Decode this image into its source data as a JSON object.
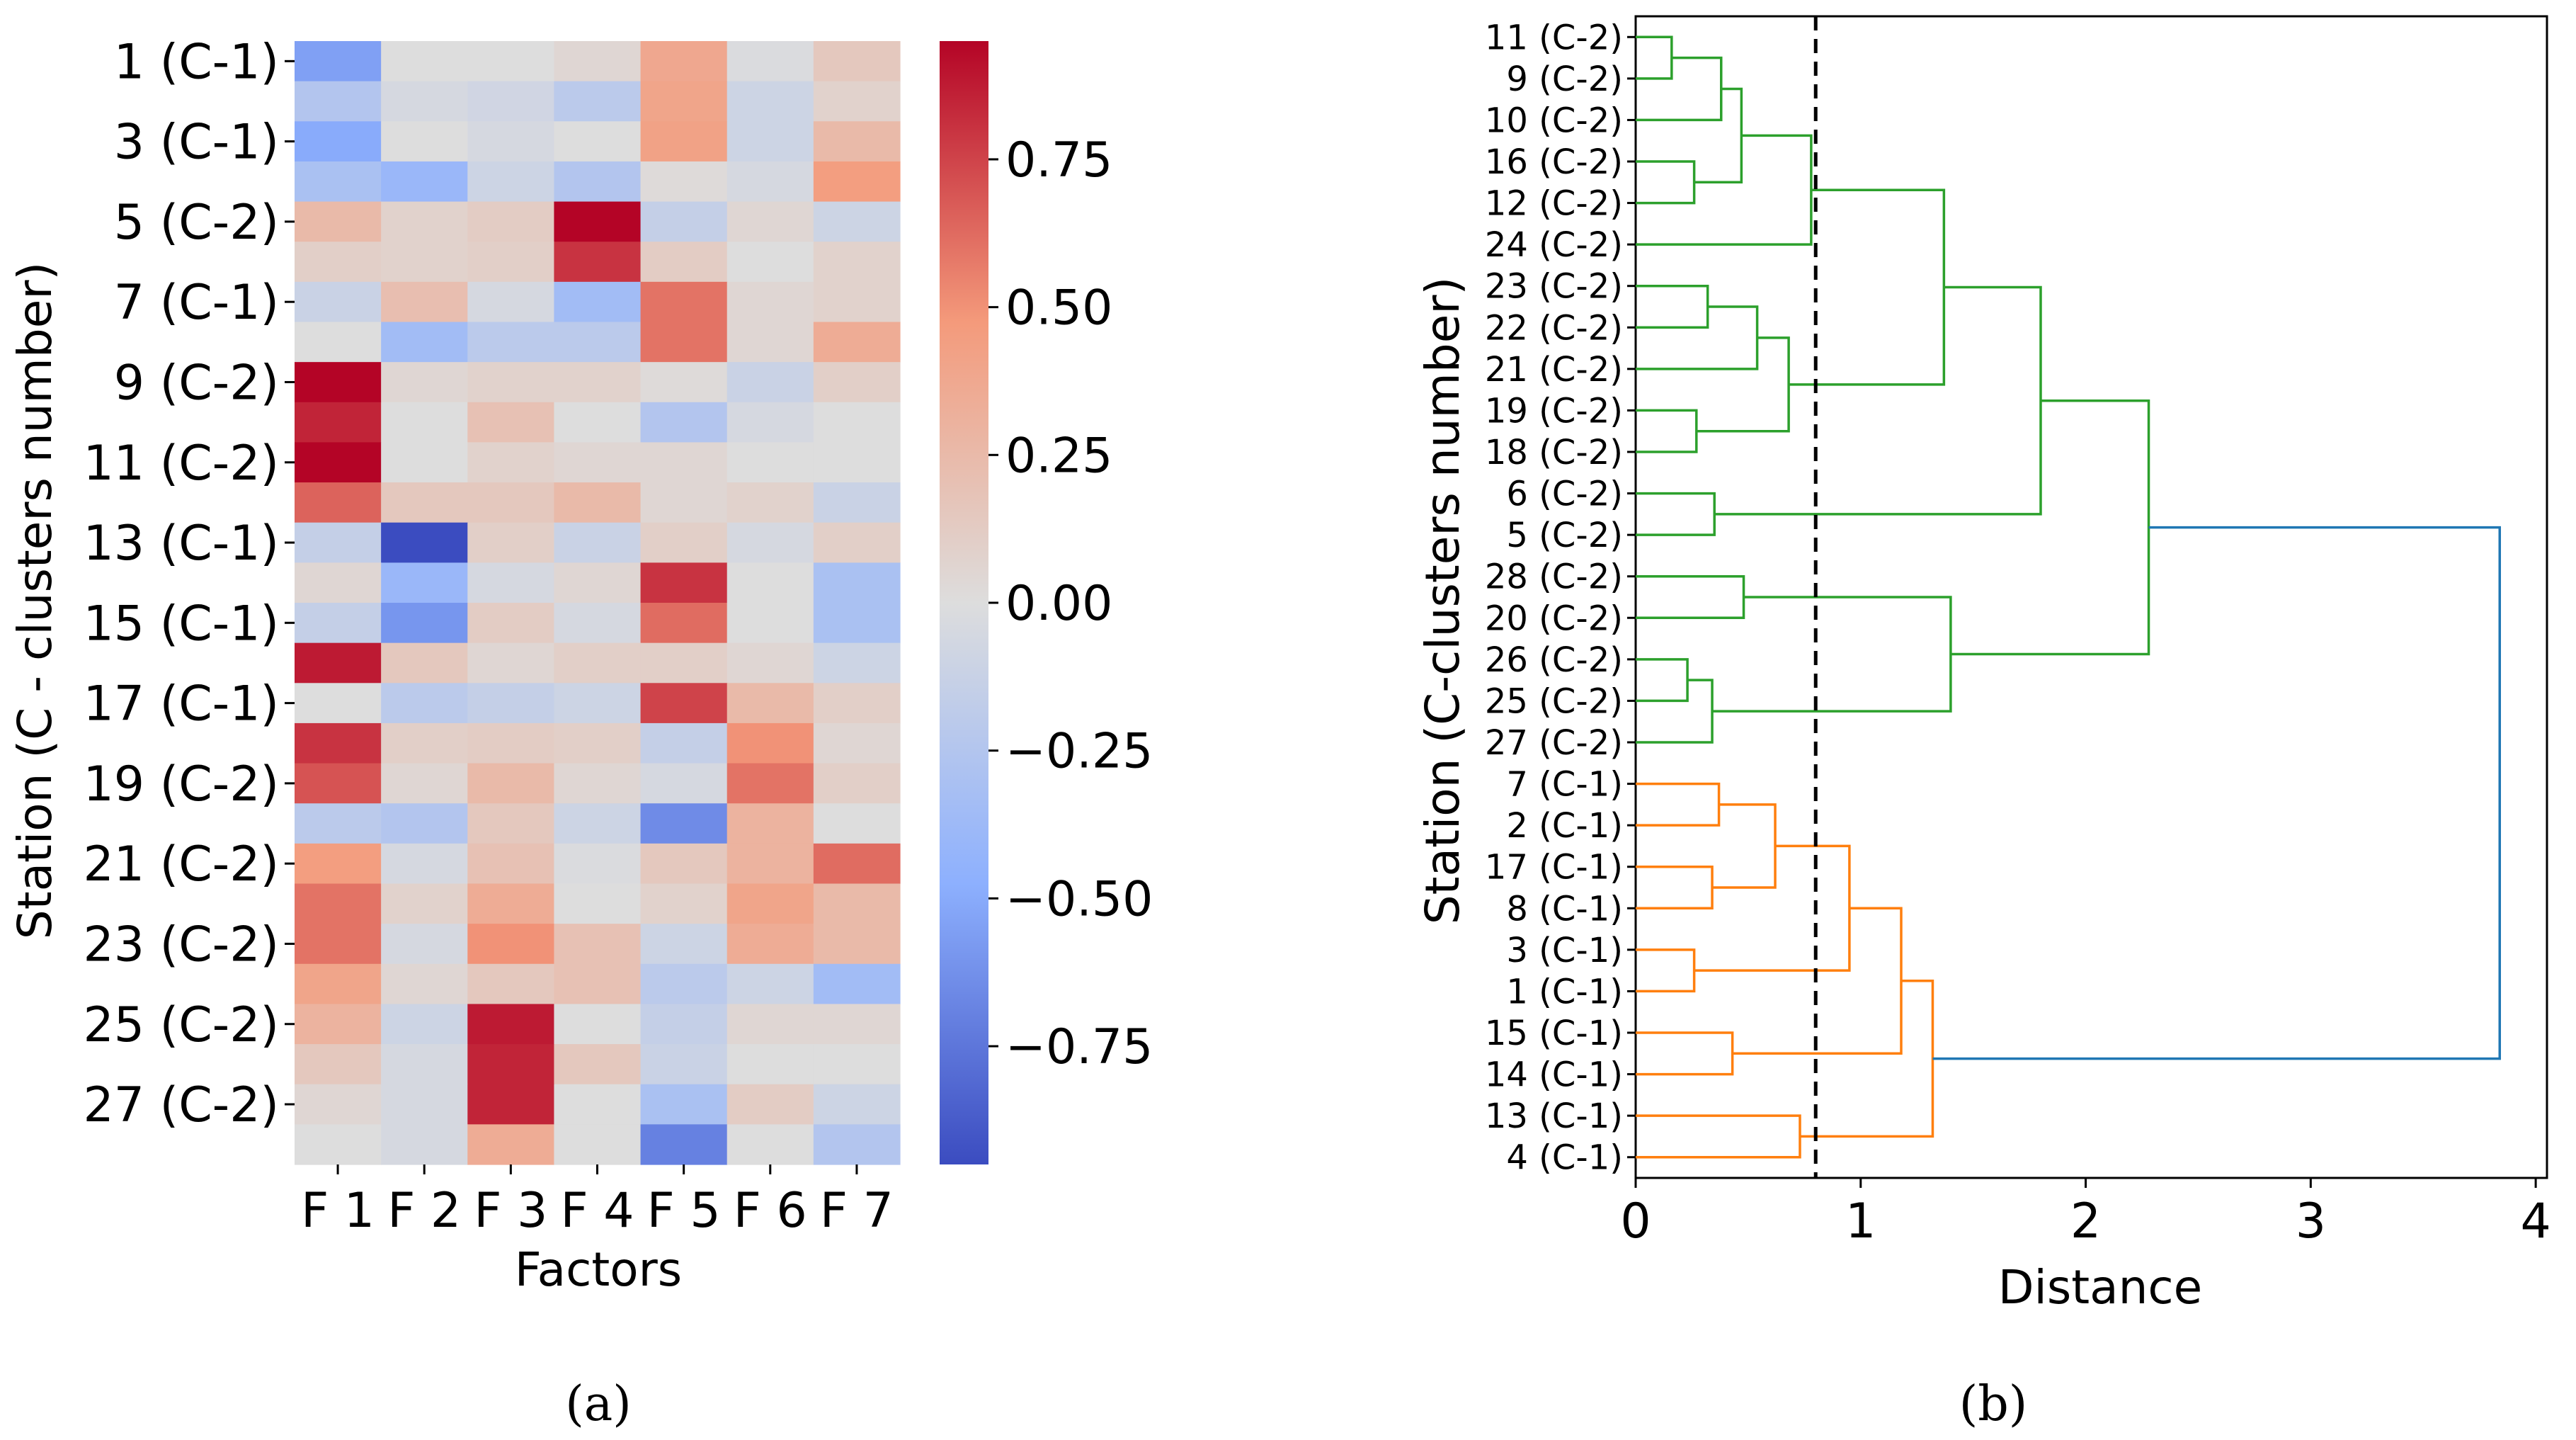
{
  "chart_data": [
    {
      "type": "heatmap",
      "panel_label": "a",
      "xlabel": "Factors",
      "ylabel": "Station (C - clusters number)",
      "columns": [
        "F 1",
        "F 2",
        "F 3",
        "F 4",
        "F 5",
        "F 6",
        "F 7"
      ],
      "row_tick_labels": [
        "1 (C-1)",
        "3 (C-1)",
        "5 (C-2)",
        "7 (C-1)",
        "9 (C-2)",
        "11 (C-2)",
        "13 (C-1)",
        "15 (C-1)",
        "17 (C-1)",
        "19 (C-2)",
        "21 (C-2)",
        "23 (C-2)",
        "25 (C-2)",
        "27 (C-2)"
      ],
      "rows": [
        "1 (C-1)",
        "2 (C-1)",
        "3 (C-1)",
        "4 (C-1)",
        "5 (C-2)",
        "6 (C-2)",
        "7 (C-1)",
        "8 (C-1)",
        "9 (C-2)",
        "10 (C-2)",
        "11 (C-2)",
        "12 (C-2)",
        "13 (C-1)",
        "14 (C-1)",
        "15 (C-1)",
        "16 (C-2)",
        "17 (C-1)",
        "18 (C-2)",
        "19 (C-2)",
        "20 (C-2)",
        "21 (C-2)",
        "22 (C-2)",
        "23 (C-2)",
        "24 (C-2)",
        "25 (C-2)",
        "26 (C-2)",
        "27 (C-2)",
        "28 (C-2)"
      ],
      "values": [
        [
          -0.55,
          0.0,
          0.0,
          0.05,
          0.38,
          -0.02,
          0.15
        ],
        [
          -0.25,
          -0.05,
          -0.08,
          -0.2,
          0.4,
          -0.1,
          0.08
        ],
        [
          -0.5,
          0.0,
          -0.05,
          0.0,
          0.42,
          -0.1,
          0.25
        ],
        [
          -0.3,
          -0.4,
          -0.1,
          -0.25,
          0.02,
          -0.05,
          0.45
        ],
        [
          0.25,
          0.08,
          0.12,
          0.95,
          -0.15,
          0.05,
          -0.1
        ],
        [
          0.1,
          0.08,
          0.1,
          0.8,
          0.12,
          0.0,
          0.08
        ],
        [
          -0.12,
          0.22,
          -0.05,
          -0.35,
          0.6,
          0.05,
          0.08
        ],
        [
          0.0,
          -0.35,
          -0.2,
          -0.2,
          0.6,
          0.05,
          0.35
        ],
        [
          0.98,
          0.05,
          0.08,
          0.08,
          0.02,
          -0.12,
          0.1
        ],
        [
          0.85,
          0.0,
          0.2,
          0.0,
          -0.25,
          -0.05,
          0.0
        ],
        [
          0.95,
          0.0,
          0.08,
          0.05,
          0.05,
          0.0,
          0.0
        ],
        [
          0.65,
          0.15,
          0.15,
          0.25,
          0.05,
          0.08,
          -0.12
        ],
        [
          -0.15,
          -0.95,
          0.1,
          -0.12,
          0.1,
          -0.05,
          0.1
        ],
        [
          0.05,
          -0.4,
          -0.05,
          0.05,
          0.8,
          0.0,
          -0.3
        ],
        [
          -0.15,
          -0.6,
          0.12,
          -0.05,
          0.62,
          0.0,
          -0.3
        ],
        [
          0.88,
          0.15,
          0.05,
          0.1,
          0.1,
          0.05,
          -0.1
        ],
        [
          0.0,
          -0.2,
          -0.15,
          -0.1,
          0.75,
          0.25,
          0.1
        ],
        [
          0.8,
          0.1,
          0.12,
          0.1,
          -0.15,
          0.5,
          0.05
        ],
        [
          0.7,
          0.05,
          0.25,
          0.05,
          -0.05,
          0.6,
          0.1
        ],
        [
          -0.2,
          -0.25,
          0.15,
          -0.1,
          -0.65,
          0.3,
          0.0
        ],
        [
          0.45,
          -0.05,
          0.2,
          -0.02,
          0.15,
          0.3,
          0.62
        ],
        [
          0.6,
          0.08,
          0.35,
          0.0,
          0.08,
          0.4,
          0.25
        ],
        [
          0.6,
          -0.05,
          0.5,
          0.2,
          -0.1,
          0.35,
          0.25
        ],
        [
          0.4,
          0.05,
          0.15,
          0.2,
          -0.2,
          -0.1,
          -0.35
        ],
        [
          0.3,
          -0.1,
          0.88,
          0.0,
          -0.15,
          0.05,
          0.05
        ],
        [
          0.15,
          -0.05,
          0.85,
          0.15,
          -0.12,
          0.0,
          0.0
        ],
        [
          0.05,
          -0.05,
          0.85,
          0.0,
          -0.3,
          0.12,
          -0.1
        ],
        [
          0.0,
          -0.05,
          0.35,
          0.0,
          -0.7,
          0.0,
          -0.25
        ]
      ],
      "vmin": -0.95,
      "vmax": 0.95,
      "colormap": "coolwarm",
      "colorbar_ticks": [
        0.75,
        0.5,
        0.25,
        0.0,
        -0.25,
        -0.5,
        -0.75
      ],
      "colorbar_tick_labels": [
        "0.75",
        "0.50",
        "0.25",
        "0.00",
        "−0.25",
        "−0.50",
        "−0.75"
      ]
    },
    {
      "type": "dendrogram",
      "panel_label": "b",
      "xlabel": "Distance",
      "ylabel": "Station (C-clusters number)",
      "x_ticks": [
        0,
        1,
        2,
        3,
        4
      ],
      "xlim": [
        0,
        4.05
      ],
      "leaves": [
        "11 (C-2)",
        "9 (C-2)",
        "10 (C-2)",
        "16 (C-2)",
        "12 (C-2)",
        "24 (C-2)",
        "23 (C-2)",
        "22 (C-2)",
        "21 (C-2)",
        "19 (C-2)",
        "18 (C-2)",
        "6 (C-2)",
        "5 (C-2)",
        "28 (C-2)",
        "20 (C-2)",
        "26 (C-2)",
        "25 (C-2)",
        "27 (C-2)",
        "7 (C-1)",
        "2 (C-1)",
        "17 (C-1)",
        "8 (C-1)",
        "3 (C-1)",
        "1 (C-1)",
        "15 (C-1)",
        "14 (C-1)",
        "13 (C-1)",
        "4 (C-1)"
      ],
      "cut_distance": 0.8,
      "colors": {
        "green": "#2ca02c",
        "orange": "#ff7f0e",
        "blue": "#1f77b4",
        "axis": "#000000"
      },
      "links": [
        {
          "a": 0,
          "b": 1,
          "d": 0.16,
          "color": "green"
        },
        {
          "a": 28,
          "b": 2,
          "d": 0.38,
          "color": "green"
        },
        {
          "a": 3,
          "b": 4,
          "d": 0.26,
          "color": "green"
        },
        {
          "a": 29,
          "b": 30,
          "d": 0.47,
          "color": "green"
        },
        {
          "a": 31,
          "b": 5,
          "d": 0.78,
          "color": "green"
        },
        {
          "a": 6,
          "b": 7,
          "d": 0.32,
          "color": "green"
        },
        {
          "a": 33,
          "b": 8,
          "d": 0.54,
          "color": "green"
        },
        {
          "a": 9,
          "b": 10,
          "d": 0.27,
          "color": "green"
        },
        {
          "a": 34,
          "b": 35,
          "d": 0.68,
          "color": "green"
        },
        {
          "a": 32,
          "b": 36,
          "d": 1.37,
          "color": "green"
        },
        {
          "a": 11,
          "b": 12,
          "d": 0.35,
          "color": "green"
        },
        {
          "a": 37,
          "b": 38,
          "d": 1.8,
          "color": "green"
        },
        {
          "a": 13,
          "b": 14,
          "d": 0.48,
          "color": "green"
        },
        {
          "a": 15,
          "b": 16,
          "d": 0.23,
          "color": "green"
        },
        {
          "a": 41,
          "b": 17,
          "d": 0.34,
          "color": "green"
        },
        {
          "a": 40,
          "b": 42,
          "d": 1.4,
          "color": "green"
        },
        {
          "a": 39,
          "b": 43,
          "d": 2.28,
          "color": "green"
        },
        {
          "a": 18,
          "b": 19,
          "d": 0.37,
          "color": "orange"
        },
        {
          "a": 20,
          "b": 21,
          "d": 0.34,
          "color": "orange"
        },
        {
          "a": 45,
          "b": 46,
          "d": 0.62,
          "color": "orange"
        },
        {
          "a": 22,
          "b": 23,
          "d": 0.26,
          "color": "orange"
        },
        {
          "a": 47,
          "b": 48,
          "d": 0.95,
          "color": "orange"
        },
        {
          "a": 24,
          "b": 25,
          "d": 0.43,
          "color": "orange"
        },
        {
          "a": 49,
          "b": 50,
          "d": 1.18,
          "color": "orange"
        },
        {
          "a": 26,
          "b": 27,
          "d": 0.73,
          "color": "orange"
        },
        {
          "a": 51,
          "b": 52,
          "d": 1.32,
          "color": "orange"
        },
        {
          "a": 44,
          "b": 53,
          "d": 3.84,
          "color": "blue"
        }
      ]
    }
  ],
  "captions": {
    "a": "(a)",
    "b": "(b)"
  }
}
